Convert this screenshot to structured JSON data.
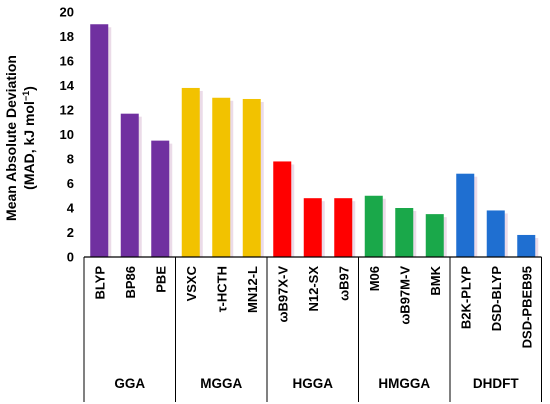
{
  "chart_data": {
    "type": "bar",
    "ylabel_line1": "Mean Absolute Deviation",
    "ylabel_line2_prefix": "(MAD, kJ mol",
    "ylabel_line2_sup": "−1",
    "ylabel_line2_suffix": ")",
    "ylim": [
      0,
      20
    ],
    "yticks": [
      0,
      2,
      4,
      6,
      8,
      10,
      12,
      14,
      16,
      18,
      20
    ],
    "grid": false,
    "groups": [
      {
        "name": "GGA",
        "color": "#7030a0",
        "categories": [
          "BLYP",
          "BP86",
          "PBE"
        ],
        "values": [
          19.0,
          11.7,
          9.5
        ]
      },
      {
        "name": "MGGA",
        "color": "#f2c200",
        "categories": [
          "VSXC",
          "τ-HCTH",
          "MN12-L"
        ],
        "values": [
          13.8,
          13.0,
          12.9
        ]
      },
      {
        "name": "HGGA",
        "color": "#ff0000",
        "categories": [
          "ωB97X-V",
          "N12-SX",
          "ωB97"
        ],
        "values": [
          7.8,
          4.8,
          4.8
        ]
      },
      {
        "name": "HMGGA",
        "color": "#1aa84a",
        "categories": [
          "M06",
          "ωB97M-V",
          "BMK"
        ],
        "values": [
          5.0,
          4.0,
          3.5
        ]
      },
      {
        "name": "DHDFT",
        "color": "#1f6fd1",
        "categories": [
          "B2K-PLYP",
          "DSD-BLYP",
          "DSD-PBEB95"
        ],
        "values": [
          6.8,
          3.8,
          1.8
        ]
      }
    ]
  }
}
